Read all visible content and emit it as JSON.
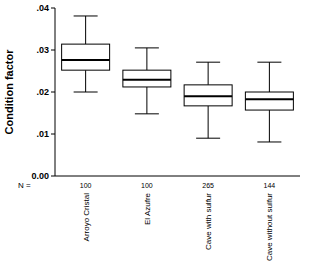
{
  "chart_data": {
    "type": "box",
    "y_label": "Condition factor",
    "categories": [
      "Arroyo Cristal",
      "El Azufre",
      "Cave with sulfur",
      "Cave without sulfur"
    ],
    "boxes": [
      {
        "min": 0.02,
        "q1": 0.0252,
        "median": 0.0276,
        "q3": 0.0314,
        "max": 0.0381
      },
      {
        "min": 0.0148,
        "q1": 0.0212,
        "median": 0.0229,
        "q3": 0.0252,
        "max": 0.0305
      },
      {
        "min": 0.009,
        "q1": 0.0167,
        "median": 0.019,
        "q3": 0.0217,
        "max": 0.0271
      },
      {
        "min": 0.0081,
        "q1": 0.0157,
        "median": 0.0183,
        "q3": 0.02,
        "max": 0.0271
      }
    ],
    "n_label": "N =",
    "n": [
      100,
      100,
      265,
      144
    ],
    "color": "#ffffff",
    "ylim": [
      0,
      0.04
    ],
    "yticks": [
      {
        "value": 0,
        "label": "0.00"
      },
      {
        "value": 0.01,
        "label": ".01"
      },
      {
        "value": 0.02,
        "label": ".02"
      },
      {
        "value": 0.03,
        "label": ".03"
      },
      {
        "value": 0.04,
        "label": ".04"
      }
    ],
    "grid": false
  }
}
